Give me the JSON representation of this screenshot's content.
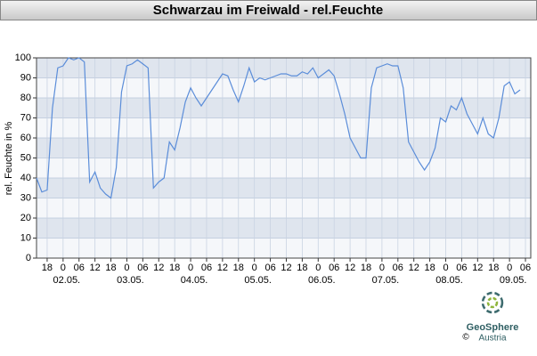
{
  "chart_data": {
    "type": "line",
    "title": "Schwarzau im Freiwald - rel.Feuchte",
    "y_label": "rel. Feuchte in %",
    "color": "#5b8dd9",
    "grid": true,
    "ylim": [
      0,
      100
    ],
    "yticks": [
      0,
      10,
      20,
      30,
      40,
      50,
      60,
      70,
      80,
      90,
      100
    ],
    "categories": [
      null,
      null,
      "18",
      null,
      null,
      "0",
      null,
      null,
      "06",
      null,
      null,
      "12",
      null,
      null,
      "18",
      null,
      null,
      "0",
      null,
      null,
      "06",
      null,
      null,
      "12",
      null,
      null,
      "18",
      null,
      null,
      "0",
      null,
      null,
      "06",
      null,
      null,
      "12",
      null,
      null,
      "18",
      null,
      null,
      "0",
      null,
      null,
      "06",
      null,
      null,
      "12",
      null,
      null,
      "18",
      null,
      null,
      "0",
      null,
      null,
      "06",
      null,
      null,
      "12",
      null,
      null,
      "18",
      null,
      null,
      "0",
      null,
      null,
      "06",
      null,
      null,
      "12",
      null,
      null,
      "18",
      null,
      null,
      "0",
      null,
      null,
      "06",
      null,
      null,
      "12",
      null,
      null,
      "18",
      null,
      null,
      "0",
      null,
      null,
      "06",
      null
    ],
    "date_categories": [
      null,
      null,
      null,
      null,
      null,
      "02.05.",
      null,
      null,
      null,
      null,
      null,
      null,
      null,
      null,
      null,
      null,
      null,
      "03.05.",
      null,
      null,
      null,
      null,
      null,
      null,
      null,
      null,
      null,
      null,
      null,
      "04.05.",
      null,
      null,
      null,
      null,
      null,
      null,
      null,
      null,
      null,
      null,
      null,
      "05.05.",
      null,
      null,
      null,
      null,
      null,
      null,
      null,
      null,
      null,
      null,
      null,
      "06.05.",
      null,
      null,
      null,
      null,
      null,
      null,
      null,
      null,
      null,
      null,
      null,
      "07.05.",
      null,
      null,
      null,
      null,
      null,
      null,
      null,
      null,
      null,
      null,
      null,
      "08.05.",
      null,
      null,
      null,
      null,
      null,
      null,
      null,
      null,
      null,
      null,
      null,
      "09.05.",
      null,
      null,
      null,
      null
    ],
    "values": [
      40,
      33,
      34,
      75,
      95,
      96,
      100,
      99,
      100,
      98,
      38,
      43,
      35,
      32,
      30,
      45,
      83,
      96,
      97,
      99,
      97,
      95,
      35,
      38,
      40,
      58,
      54,
      65,
      78,
      85,
      80,
      76,
      80,
      84,
      88,
      92,
      91,
      84,
      78,
      86,
      95,
      88,
      90,
      89,
      90,
      91,
      92,
      92,
      91,
      91,
      93,
      92,
      95,
      90,
      92,
      94,
      91,
      82,
      72,
      60,
      55,
      50,
      50,
      85,
      95,
      96,
      97,
      96,
      96,
      85,
      58,
      53,
      48,
      44,
      48,
      55,
      70,
      68,
      76,
      74,
      80,
      72,
      67,
      62,
      70,
      62,
      60,
      70,
      86,
      88,
      82,
      84,
      null,
      null
    ],
    "footer": {
      "brand": "GeoSphere",
      "sub": "Austria",
      "copyright": "©"
    }
  }
}
